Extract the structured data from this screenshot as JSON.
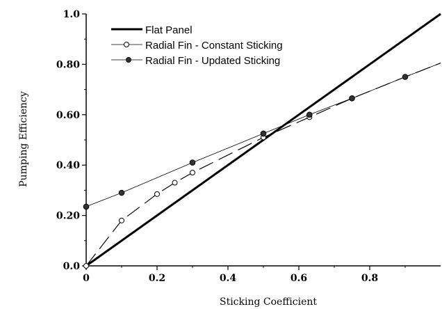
{
  "chart_data": {
    "type": "line",
    "xlabel": "Sticking Coefficient",
    "ylabel": "Pumping Efficiency",
    "xlim": [
      0,
      1.0
    ],
    "ylim": [
      0,
      1.0
    ],
    "x_ticks": [
      0,
      0.2,
      0.4,
      0.6,
      0.8
    ],
    "x_tick_labels": [
      "0",
      "0.2",
      "0.4",
      "0.6",
      "0.8"
    ],
    "y_ticks": [
      0,
      0.2,
      0.4,
      0.6,
      0.8,
      1.0
    ],
    "y_tick_labels": [
      "0.0",
      "0.20",
      "0.40",
      "0.60",
      "0.80",
      "1.0"
    ],
    "grid": false,
    "legend_position": "top-left",
    "series": [
      {
        "name": "Flat Panel",
        "style": "thick-solid",
        "marker": "none",
        "color": "#000000",
        "x": [
          0,
          1.0
        ],
        "y": [
          0,
          1.0
        ]
      },
      {
        "name": "Radial Fin - Constant Sticking",
        "style": "dashed",
        "marker": "open-circle",
        "color": "#000000",
        "x": [
          0,
          0.1,
          0.2,
          0.25,
          0.3,
          0.5,
          0.63,
          0.75,
          0.9,
          1.0
        ],
        "y": [
          0,
          0.18,
          0.285,
          0.33,
          0.37,
          0.51,
          0.59,
          0.665,
          0.75,
          0.805
        ]
      },
      {
        "name": "Radial Fin - Updated Sticking",
        "style": "thin-solid",
        "marker": "filled-circle",
        "color": "#000000",
        "x": [
          0,
          0.1,
          0.3,
          0.5,
          0.63,
          0.75,
          0.9,
          1.0
        ],
        "y": [
          0.235,
          0.29,
          0.41,
          0.525,
          0.6,
          0.665,
          0.75,
          0.805
        ]
      }
    ]
  }
}
